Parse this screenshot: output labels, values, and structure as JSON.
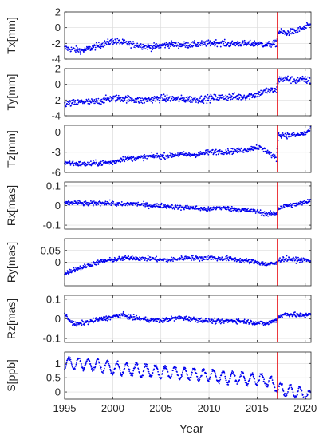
{
  "chart_data": {
    "type": "scatter",
    "xlabel": "Year",
    "xlim": [
      1995,
      2020.6
    ],
    "xticks": [
      1995,
      2000,
      2005,
      2010,
      2015,
      2020
    ],
    "xtick_labels": [
      "1995",
      "2000",
      "2005",
      "2010",
      "2015",
      "2020"
    ],
    "grid": true,
    "marker_color": "#0000ee",
    "vertical_line": {
      "x": 2017.1,
      "color": "#e8151b"
    },
    "panels": [
      {
        "ylabel": "Tx[mm]",
        "ylim": [
          -4,
          2
        ],
        "yticks": [
          -4,
          -2,
          0,
          2
        ],
        "ytick_labels": [
          "-4",
          "-2",
          "0",
          "2"
        ],
        "series": [
          {
            "x": [
              1995,
              1996,
              1997,
              1998,
              1999,
              2000,
              2001,
              2002,
              2003,
              2004,
              2005,
              2006,
              2007,
              2008,
              2009,
              2010,
              2011,
              2012,
              2013,
              2014,
              2015,
              2016,
              2017,
              2017.2,
              2018,
              2019,
              2020,
              2020.5
            ],
            "y": [
              -2.6,
              -2.8,
              -2.9,
              -2.5,
              -2.1,
              -1.7,
              -1.9,
              -2.1,
              -2.3,
              -2.5,
              -2.3,
              -2.1,
              -2.2,
              -2.2,
              -2.1,
              -2.0,
              -1.9,
              -2.1,
              -2.0,
              -2.1,
              -2.0,
              -2.2,
              -2.0,
              -0.5,
              -0.7,
              -0.4,
              0.0,
              0.4
            ],
            "noise": 0.4
          }
        ]
      },
      {
        "ylabel": "Ty[mm]",
        "ylim": [
          -4,
          2
        ],
        "yticks": [
          -4,
          -2,
          0,
          2
        ],
        "ytick_labels": [
          "-4",
          "-2",
          "0",
          "2"
        ],
        "series": [
          {
            "x": [
              1995,
              1996,
              1997,
              1998,
              1999,
              2000,
              2001,
              2002,
              2003,
              2004,
              2005,
              2006,
              2007,
              2008,
              2009,
              2010,
              2011,
              2012,
              2013,
              2014,
              2015,
              2016,
              2017,
              2017.2,
              2018,
              2019,
              2020,
              2020.5
            ],
            "y": [
              -2.5,
              -2.4,
              -2.2,
              -2.3,
              -2.0,
              -1.8,
              -1.8,
              -1.9,
              -2.1,
              -1.9,
              -1.8,
              -1.8,
              -1.9,
              -1.9,
              -1.9,
              -1.8,
              -1.7,
              -1.6,
              -1.6,
              -1.5,
              -1.3,
              -0.8,
              -0.8,
              0.6,
              0.7,
              0.5,
              0.6,
              0.4
            ],
            "noise": 0.45
          }
        ]
      },
      {
        "ylabel": "Tz[mm]",
        "ylim": [
          -6,
          1
        ],
        "yticks": [
          -6,
          -3,
          0
        ],
        "ytick_labels": [
          "-6",
          "-3",
          "0"
        ],
        "series": [
          {
            "x": [
              1995,
              1996,
              1997,
              1998,
              1999,
              2000,
              2001,
              2002,
              2003,
              2004,
              2005,
              2006,
              2007,
              2008,
              2009,
              2010,
              2011,
              2012,
              2013,
              2014,
              2015,
              2016,
              2017,
              2017.2,
              2018,
              2019,
              2020,
              2020.5
            ],
            "y": [
              -4.5,
              -4.7,
              -4.8,
              -4.7,
              -4.6,
              -4.5,
              -4.0,
              -3.9,
              -3.8,
              -3.6,
              -3.6,
              -3.5,
              -3.3,
              -3.4,
              -3.3,
              -3.0,
              -2.9,
              -2.9,
              -2.8,
              -2.6,
              -2.2,
              -2.8,
              -4.0,
              -0.4,
              -0.5,
              -0.5,
              -0.2,
              0.3
            ],
            "noise": 0.4
          }
        ]
      },
      {
        "ylabel": "Rx[mas]",
        "ylim": [
          -0.12,
          0.12
        ],
        "yticks": [
          -0.1,
          0,
          0.1
        ],
        "ytick_labels": [
          "-0.1",
          "0",
          "0.1"
        ],
        "series": [
          {
            "x": [
              1995,
              1996,
              1997,
              1998,
              1999,
              2000,
              2001,
              2002,
              2003,
              2004,
              2005,
              2006,
              2007,
              2008,
              2009,
              2010,
              2011,
              2012,
              2013,
              2014,
              2015,
              2016,
              2017,
              2017.2,
              2018,
              2019,
              2020,
              2020.5
            ],
            "y": [
              0.01,
              0.015,
              0.01,
              0.01,
              0.015,
              0.01,
              0.005,
              0.01,
              0.005,
              0.0,
              0.0,
              -0.005,
              -0.01,
              -0.01,
              -0.015,
              -0.02,
              -0.01,
              -0.015,
              -0.02,
              -0.025,
              -0.03,
              -0.045,
              -0.04,
              -0.015,
              0.0,
              0.005,
              0.015,
              0.03
            ],
            "noise": 0.012
          }
        ]
      },
      {
        "ylabel": "Ry[mas]",
        "ylim": [
          -0.1,
          0.1
        ],
        "yticks": [
          0,
          0.05
        ],
        "ytick_labels": [
          "0",
          "0.05"
        ],
        "series": [
          {
            "x": [
              1995,
              1996,
              1997,
              1998,
              1999,
              2000,
              2001,
              2002,
              2003,
              2004,
              2005,
              2006,
              2007,
              2008,
              2009,
              2010,
              2011,
              2012,
              2013,
              2014,
              2015,
              2016,
              2017,
              2017.2,
              2018,
              2019,
              2020,
              2020.5
            ],
            "y": [
              -0.05,
              -0.03,
              -0.02,
              -0.005,
              0.005,
              0.01,
              0.015,
              0.02,
              0.015,
              0.015,
              0.01,
              0.01,
              0.015,
              0.02,
              0.015,
              0.02,
              0.015,
              0.015,
              0.01,
              0.005,
              0.0,
              -0.01,
              -0.005,
              0.01,
              0.015,
              0.01,
              0.01,
              0.005
            ],
            "noise": 0.01
          }
        ]
      },
      {
        "ylabel": "Rz[mas]",
        "ylim": [
          -0.12,
          0.12
        ],
        "yticks": [
          -0.1,
          0,
          0.1
        ],
        "ytick_labels": [
          "-0.1",
          "0",
          "0.1"
        ],
        "series": [
          {
            "x": [
              1995,
              1996,
              1997,
              1998,
              1999,
              2000,
              2001,
              2002,
              2003,
              2004,
              2005,
              2006,
              2007,
              2008,
              2009,
              2010,
              2011,
              2012,
              2013,
              2014,
              2015,
              2016,
              2017,
              2017.2,
              2018,
              2019,
              2020,
              2020.5
            ],
            "y": [
              0.02,
              -0.03,
              -0.02,
              -0.01,
              0.0,
              0.01,
              0.02,
              0.005,
              0.0,
              -0.005,
              -0.01,
              0.0,
              0.005,
              0.0,
              -0.005,
              -0.01,
              -0.015,
              -0.01,
              -0.01,
              -0.015,
              -0.02,
              -0.025,
              -0.005,
              0.01,
              0.025,
              0.02,
              0.015,
              0.03
            ],
            "noise": 0.012
          }
        ]
      },
      {
        "ylabel": "S[ppb]",
        "ylim": [
          -0.25,
          1.4
        ],
        "yticks": [
          0,
          0.5,
          1
        ],
        "ytick_labels": [
          "0",
          "0.5",
          "1"
        ],
        "series": [
          {
            "x": [
              1995,
              1996,
              1997,
              1998,
              1999,
              2000,
              2001,
              2002,
              2003,
              2004,
              2005,
              2006,
              2007,
              2008,
              2009,
              2010,
              2011,
              2012,
              2013,
              2014,
              2015,
              2016,
              2017,
              2017.2,
              2018,
              2019,
              2020,
              2020.5
            ],
            "y": [
              1.0,
              1.0,
              1.0,
              0.95,
              0.9,
              0.85,
              0.8,
              0.8,
              0.75,
              0.75,
              0.7,
              0.7,
              0.65,
              0.65,
              0.6,
              0.6,
              0.55,
              0.5,
              0.5,
              0.45,
              0.45,
              0.4,
              0.25,
              0.15,
              0.05,
              0.0,
              -0.05,
              -0.15
            ],
            "seasonal_amplitude": 0.2,
            "noise": 0.07
          }
        ]
      }
    ]
  }
}
